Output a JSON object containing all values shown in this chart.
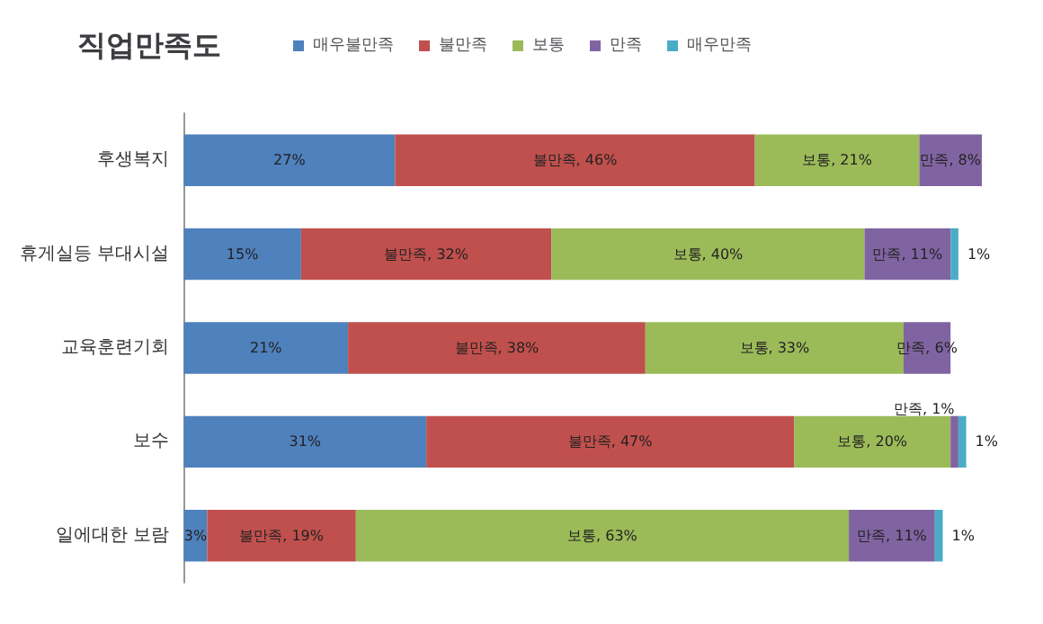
{
  "chart_data": {
    "type": "bar",
    "orientation": "horizontal",
    "stacked": true,
    "title": "직업만족도",
    "legend": "top",
    "tick_labels": "y",
    "xlim": [
      0,
      102
    ],
    "categories": [
      "후생복지",
      "휴게실등 부대시설",
      "교육훈련기회",
      "보수",
      "일에대한 보람"
    ],
    "series": [
      {
        "name": "매우불만족",
        "color": "#4f81bd",
        "values": [
          27,
          15,
          21,
          31,
          3
        ],
        "value_labels": [
          "27%",
          "15%",
          "21%",
          "31%",
          "3%"
        ]
      },
      {
        "name": "불만족",
        "color": "#c0504d",
        "values": [
          46,
          32,
          38,
          47,
          19
        ],
        "value_labels": [
          "불만족, 46%",
          "불만족, 32%",
          "불만족, 38%",
          "불만족, 47%",
          "불만족, 19%"
        ]
      },
      {
        "name": "보통",
        "color": "#9bbb59",
        "values": [
          21,
          40,
          33,
          20,
          63
        ],
        "value_labels": [
          "보통, 21%",
          "보통, 40%",
          "보통, 33%",
          "보통, 20%",
          "보통, 63%"
        ]
      },
      {
        "name": "만족",
        "color": "#8064a2",
        "values": [
          8,
          11,
          6,
          1,
          11
        ],
        "value_labels": [
          "만족, 8%",
          "만족, 11%",
          "만족, 6%",
          "만족, 1%",
          "만족, 11%"
        ]
      },
      {
        "name": "매우만족",
        "color": "#4bacc6",
        "values": [
          null,
          1,
          null,
          1,
          1
        ],
        "value_labels": [
          null,
          "1%",
          null,
          "1%",
          "1%"
        ]
      }
    ]
  }
}
